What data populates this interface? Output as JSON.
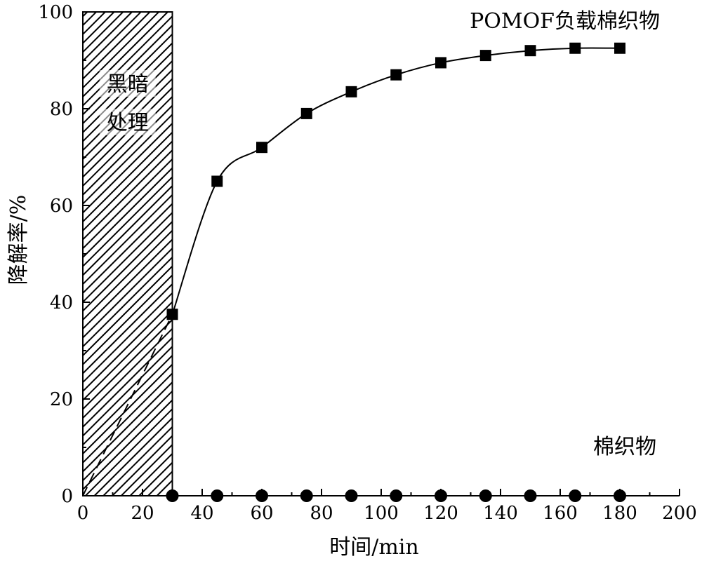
{
  "chart_data": {
    "type": "line",
    "xlabel": "时间/min",
    "ylabel": "降解率/%",
    "xlim": [
      0,
      200
    ],
    "ylim": [
      0,
      100
    ],
    "xticks": [
      0,
      20,
      40,
      60,
      80,
      100,
      120,
      140,
      160,
      180,
      200
    ],
    "yticks": [
      0,
      20,
      40,
      60,
      80,
      100
    ],
    "grid": false,
    "legend": "none",
    "dark_region": {
      "x_start": 0,
      "x_end": 30,
      "label_line1": "黑暗",
      "label_line2": "处理"
    },
    "series": [
      {
        "name": "POMOF负载棉织物",
        "marker": "square",
        "color": "#000000",
        "x": [
          30,
          45,
          60,
          75,
          90,
          105,
          120,
          135,
          150,
          165,
          180
        ],
        "y": [
          37.5,
          65,
          72,
          79,
          83.5,
          87,
          89.5,
          91,
          92,
          92.5,
          92.5
        ]
      },
      {
        "name": "棉织物",
        "marker": "circle",
        "color": "#000000",
        "x": [
          30,
          45,
          60,
          75,
          90,
          105,
          120,
          135,
          150,
          165,
          180
        ],
        "y": [
          0,
          0,
          0,
          0,
          0,
          0,
          0,
          0,
          0,
          0,
          0
        ]
      }
    ],
    "dark_phase_dashed": {
      "x": [
        0,
        30
      ],
      "y": [
        0,
        37.5
      ]
    }
  }
}
